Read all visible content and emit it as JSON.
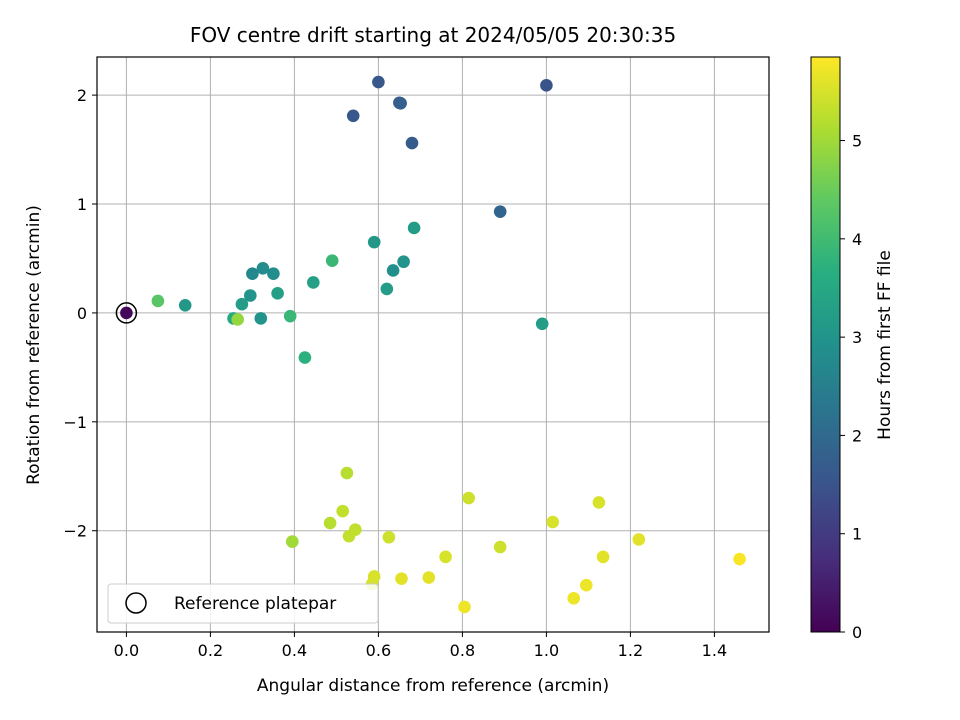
{
  "chart_data": {
    "type": "scatter",
    "title": "FOV centre drift starting at 2024/05/05 20:30:35",
    "xlabel": "Angular distance from reference (arcmin)",
    "ylabel": "Rotation from reference (arcmin)",
    "xlim": [
      -0.07,
      1.53
    ],
    "ylim": [
      -2.93,
      2.35
    ],
    "xticks": [
      0.0,
      0.2,
      0.4,
      0.6,
      0.8,
      1.0,
      1.2,
      1.4
    ],
    "xtick_labels": [
      "0.0",
      "0.2",
      "0.4",
      "0.6",
      "0.8",
      "1.0",
      "1.2",
      "1.4"
    ],
    "yticks": [
      -2,
      -1,
      0,
      1,
      2
    ],
    "ytick_labels": [
      "−2",
      "−1",
      "0",
      "1",
      "2"
    ],
    "grid": true,
    "colormap": "viridis",
    "colorbar": {
      "label": "Hours from first FF file",
      "range": [
        0,
        5.85
      ],
      "ticks": [
        0,
        1,
        2,
        3,
        4,
        5
      ],
      "tick_labels": [
        "0",
        "1",
        "2",
        "3",
        "4",
        "5"
      ]
    },
    "legend": {
      "placement": "lower-left",
      "entries": [
        "Reference platepar"
      ]
    },
    "reference_point": {
      "x": 0.0,
      "y": 0.0
    },
    "points": [
      {
        "x": 0.0,
        "y": 0.0,
        "t": 0.1
      },
      {
        "x": 0.6,
        "y": 2.12,
        "t": 1.6
      },
      {
        "x": 1.0,
        "y": 2.09,
        "t": 1.5
      },
      {
        "x": 0.65,
        "y": 1.93,
        "t": 1.7
      },
      {
        "x": 0.653,
        "y": 1.925,
        "t": 1.75
      },
      {
        "x": 0.54,
        "y": 1.81,
        "t": 1.6
      },
      {
        "x": 0.68,
        "y": 1.56,
        "t": 1.7
      },
      {
        "x": 0.89,
        "y": 0.93,
        "t": 1.9
      },
      {
        "x": 0.685,
        "y": 0.78,
        "t": 3.2
      },
      {
        "x": 0.59,
        "y": 0.65,
        "t": 3.1
      },
      {
        "x": 0.49,
        "y": 0.48,
        "t": 3.9
      },
      {
        "x": 0.66,
        "y": 0.47,
        "t": 3.0
      },
      {
        "x": 0.325,
        "y": 0.41,
        "t": 2.8
      },
      {
        "x": 0.635,
        "y": 0.39,
        "t": 2.9
      },
      {
        "x": 0.3,
        "y": 0.36,
        "t": 2.7
      },
      {
        "x": 0.35,
        "y": 0.36,
        "t": 2.8
      },
      {
        "x": 0.445,
        "y": 0.28,
        "t": 3.3
      },
      {
        "x": 0.62,
        "y": 0.22,
        "t": 3.2
      },
      {
        "x": 0.36,
        "y": 0.18,
        "t": 3.3
      },
      {
        "x": 0.295,
        "y": 0.16,
        "t": 3.0
      },
      {
        "x": 0.075,
        "y": 0.11,
        "t": 4.3
      },
      {
        "x": 0.275,
        "y": 0.08,
        "t": 3.2
      },
      {
        "x": 0.14,
        "y": 0.07,
        "t": 3.1
      },
      {
        "x": 0.255,
        "y": -0.05,
        "t": 3.5
      },
      {
        "x": 0.32,
        "y": -0.05,
        "t": 3.0
      },
      {
        "x": 0.39,
        "y": -0.03,
        "t": 3.9
      },
      {
        "x": 0.265,
        "y": -0.06,
        "t": 4.9
      },
      {
        "x": 0.99,
        "y": -0.1,
        "t": 3.2
      },
      {
        "x": 0.425,
        "y": -0.41,
        "t": 3.7
      },
      {
        "x": 0.525,
        "y": -1.47,
        "t": 5.2
      },
      {
        "x": 0.815,
        "y": -1.7,
        "t": 5.4
      },
      {
        "x": 1.125,
        "y": -1.74,
        "t": 5.5
      },
      {
        "x": 0.515,
        "y": -1.82,
        "t": 5.3
      },
      {
        "x": 0.485,
        "y": -1.93,
        "t": 5.2
      },
      {
        "x": 1.015,
        "y": -1.92,
        "t": 5.5
      },
      {
        "x": 0.545,
        "y": -1.99,
        "t": 5.3
      },
      {
        "x": 0.53,
        "y": -2.05,
        "t": 5.3
      },
      {
        "x": 0.625,
        "y": -2.06,
        "t": 5.4
      },
      {
        "x": 1.22,
        "y": -2.08,
        "t": 5.6
      },
      {
        "x": 0.395,
        "y": -2.1,
        "t": 5.0
      },
      {
        "x": 0.89,
        "y": -2.15,
        "t": 5.4
      },
      {
        "x": 0.76,
        "y": -2.24,
        "t": 5.5
      },
      {
        "x": 1.135,
        "y": -2.24,
        "t": 5.6
      },
      {
        "x": 1.46,
        "y": -2.26,
        "t": 5.8
      },
      {
        "x": 0.59,
        "y": -2.42,
        "t": 5.5
      },
      {
        "x": 0.72,
        "y": -2.43,
        "t": 5.6
      },
      {
        "x": 0.655,
        "y": -2.44,
        "t": 5.6
      },
      {
        "x": 0.585,
        "y": -2.49,
        "t": 5.5
      },
      {
        "x": 1.095,
        "y": -2.5,
        "t": 5.7
      },
      {
        "x": 1.065,
        "y": -2.62,
        "t": 5.7
      },
      {
        "x": 0.805,
        "y": -2.7,
        "t": 5.7
      }
    ]
  }
}
